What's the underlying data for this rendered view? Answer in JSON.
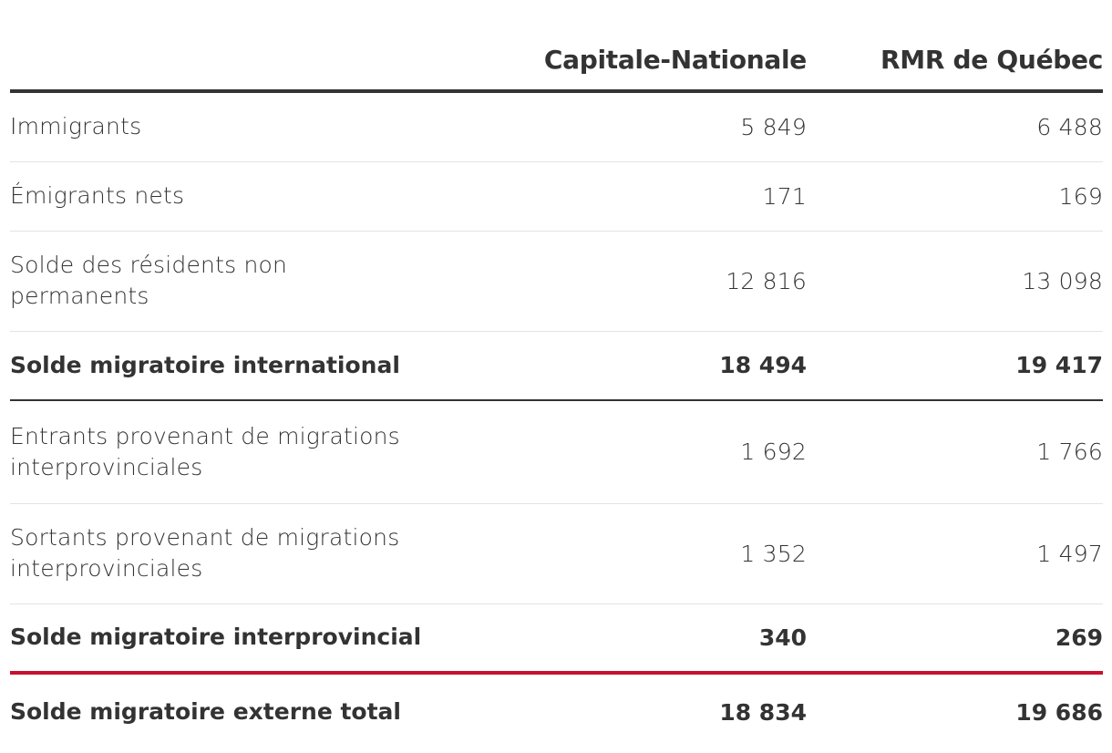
{
  "colors": {
    "text": "#333333",
    "rule_dark": "#333333",
    "rule_light": "#e3e3e3",
    "rule_total": "#c8102e"
  },
  "chart_data": {
    "type": "table",
    "columns": [
      "",
      "Capitale-Nationale",
      "RMR de Québec"
    ],
    "rows": [
      {
        "label": "Immigrants",
        "values": [
          "5 849",
          "6 488"
        ],
        "bold": false
      },
      {
        "label": "Émigrants nets",
        "values": [
          "171",
          "169"
        ],
        "bold": false
      },
      {
        "label": "Solde des résidents non permanents",
        "values": [
          "12 816",
          "13 098"
        ],
        "bold": false
      },
      {
        "label": "Solde migratoire international",
        "values": [
          "18 494",
          "19 417"
        ],
        "bold": true
      },
      {
        "label": "Entrants provenant de migrations interprovinciales",
        "values": [
          "1 692",
          "1 766"
        ],
        "bold": false
      },
      {
        "label": "Sortants provenant de migrations interprovinciales",
        "values": [
          "1 352",
          "1 497"
        ],
        "bold": false
      },
      {
        "label": "Solde migratoire interprovincial",
        "values": [
          "340",
          "269"
        ],
        "bold": true
      },
      {
        "label": "Solde migratoire externe total",
        "values": [
          "18 834",
          "19 686"
        ],
        "bold": true
      }
    ]
  }
}
